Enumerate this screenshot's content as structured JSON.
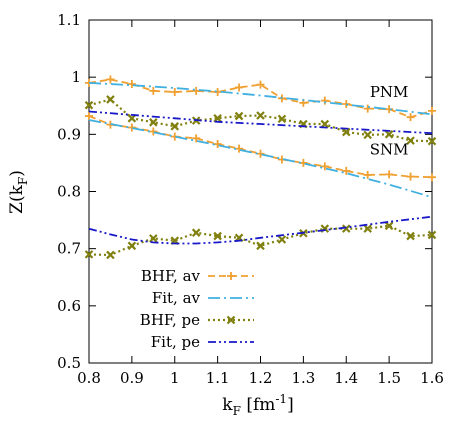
{
  "chart_data": {
    "type": "line",
    "title": "",
    "xlabel": "k",
    "xlabel_sub": "F",
    "xlabel_unit_pre": " [fm",
    "xlabel_unit_sup": "-1",
    "xlabel_unit_post": "]",
    "ylabel": "Z(k",
    "ylabel_sub": "F",
    "ylabel_post": ")",
    "xlim": [
      0.8,
      1.6
    ],
    "ylim": [
      0.5,
      1.1
    ],
    "xticks": [
      "0.8",
      "0.9",
      "1",
      "1.1",
      "1.2",
      "1.3",
      "1.4",
      "1.5",
      "1.6"
    ],
    "yticks": [
      "0.5",
      "0.6",
      "0.7",
      "0.8",
      "0.9",
      "1",
      "1.1"
    ],
    "grid": false,
    "legend_position": "bottom-left",
    "annotations": [
      {
        "text": "PNM",
        "x": 1.5,
        "y": 0.965
      },
      {
        "text": "SNM",
        "x": 1.5,
        "y": 0.865
      }
    ],
    "series": [
      {
        "name": "BHF, av",
        "color": "#f0a030",
        "style": "line-plus",
        "curves": [
          {
            "x": [
              0.8,
              0.85,
              0.9,
              0.95,
              1.0,
              1.05,
              1.1,
              1.15,
              1.2,
              1.25,
              1.3,
              1.35,
              1.4,
              1.45,
              1.5,
              1.55,
              1.6
            ],
            "y": [
              0.99,
              0.996,
              0.988,
              0.976,
              0.974,
              0.976,
              0.974,
              0.982,
              0.987,
              0.963,
              0.955,
              0.959,
              0.953,
              0.945,
              0.944,
              0.93,
              0.941
            ]
          },
          {
            "x": [
              0.8,
              0.85,
              0.9,
              0.95,
              1.0,
              1.05,
              1.1,
              1.15,
              1.2,
              1.25,
              1.3,
              1.35,
              1.4,
              1.45,
              1.5,
              1.55,
              1.6
            ],
            "y": [
              0.932,
              0.917,
              0.912,
              0.905,
              0.896,
              0.893,
              0.883,
              0.875,
              0.866,
              0.856,
              0.85,
              0.844,
              0.836,
              0.829,
              0.83,
              0.826,
              0.825
            ]
          }
        ]
      },
      {
        "name": "Fit, av",
        "color": "#40b0e0",
        "style": "dashdot",
        "curves": [
          {
            "x": [
              0.8,
              0.9,
              1.0,
              1.1,
              1.2,
              1.3,
              1.4,
              1.5,
              1.6
            ],
            "y": [
              0.99,
              0.986,
              0.981,
              0.975,
              0.968,
              0.96,
              0.952,
              0.944,
              0.935
            ]
          },
          {
            "x": [
              0.8,
              0.9,
              1.0,
              1.1,
              1.2,
              1.3,
              1.4,
              1.5,
              1.6
            ],
            "y": [
              0.925,
              0.911,
              0.896,
              0.881,
              0.865,
              0.849,
              0.832,
              0.812,
              0.79
            ]
          }
        ]
      },
      {
        "name": "BHF, pe",
        "color": "#808010",
        "style": "dotted-x",
        "curves": [
          {
            "x": [
              0.8,
              0.85,
              0.9,
              0.95,
              1.0,
              1.05,
              1.1,
              1.15,
              1.2,
              1.25,
              1.3,
              1.35,
              1.4,
              1.45,
              1.5,
              1.55,
              1.6
            ],
            "y": [
              0.951,
              0.961,
              0.928,
              0.921,
              0.914,
              0.924,
              0.928,
              0.932,
              0.933,
              0.927,
              0.918,
              0.918,
              0.904,
              0.899,
              0.9,
              0.889,
              0.888
            ]
          },
          {
            "x": [
              0.8,
              0.85,
              0.9,
              0.95,
              1.0,
              1.05,
              1.1,
              1.15,
              1.2,
              1.25,
              1.3,
              1.35,
              1.4,
              1.45,
              1.5,
              1.55,
              1.6
            ],
            "y": [
              0.69,
              0.689,
              0.705,
              0.718,
              0.714,
              0.728,
              0.722,
              0.719,
              0.705,
              0.716,
              0.727,
              0.735,
              0.735,
              0.735,
              0.74,
              0.722,
              0.724
            ]
          }
        ]
      },
      {
        "name": "Fit, pe",
        "color": "#1818c8",
        "style": "dashdotdot",
        "curves": [
          {
            "x": [
              0.8,
              0.9,
              1.0,
              1.1,
              1.2,
              1.3,
              1.4,
              1.5,
              1.6
            ],
            "y": [
              0.94,
              0.934,
              0.928,
              0.922,
              0.918,
              0.914,
              0.91,
              0.906,
              0.902
            ]
          },
          {
            "x": [
              0.8,
              0.85,
              0.9,
              0.95,
              1.0,
              1.05,
              1.1,
              1.15,
              1.2,
              1.3,
              1.4,
              1.5,
              1.6
            ],
            "y": [
              0.735,
              0.725,
              0.716,
              0.711,
              0.709,
              0.709,
              0.711,
              0.714,
              0.719,
              0.728,
              0.737,
              0.747,
              0.756
            ]
          }
        ]
      }
    ]
  }
}
